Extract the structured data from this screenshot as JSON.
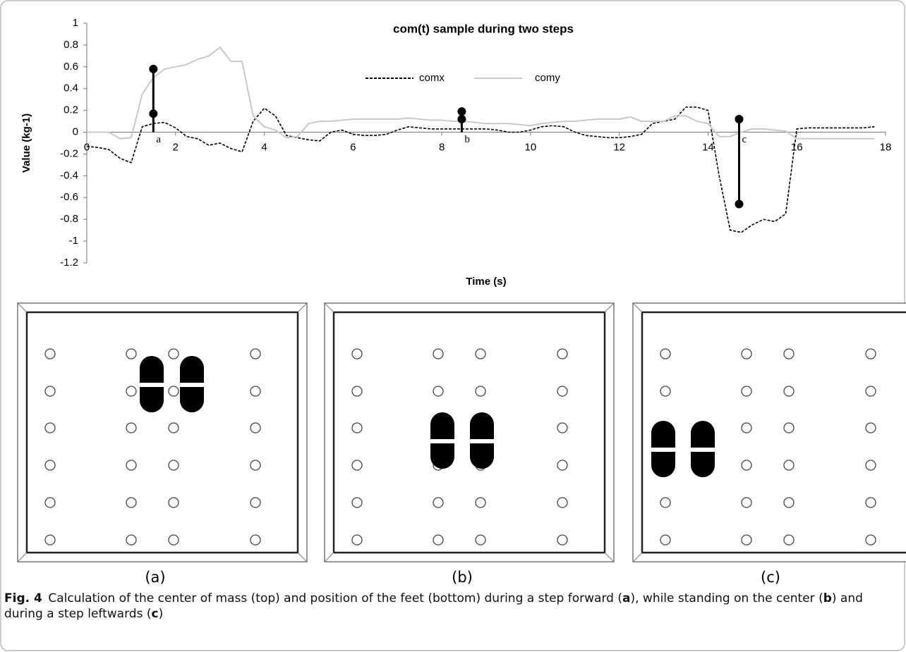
{
  "chart_data": {
    "type": "line",
    "title": "com(t) sample during two steps",
    "xlabel": "Time (s)",
    "ylabel": "Value (kg-1)",
    "x": [
      0,
      0.25,
      0.5,
      0.75,
      1,
      1.25,
      1.5,
      1.75,
      2,
      2.25,
      2.5,
      2.75,
      3,
      3.25,
      3.5,
      3.75,
      4,
      4.25,
      4.5,
      4.75,
      5,
      5.25,
      5.5,
      5.75,
      6,
      6.25,
      6.5,
      6.75,
      7,
      7.25,
      7.5,
      7.75,
      8,
      8.25,
      8.5,
      8.75,
      9,
      9.25,
      9.5,
      9.75,
      10,
      10.25,
      10.5,
      10.75,
      11,
      11.25,
      11.5,
      11.75,
      12,
      12.25,
      12.5,
      12.75,
      13,
      13.25,
      13.5,
      13.75,
      14,
      14.25,
      14.5,
      14.75,
      15,
      15.25,
      15.5,
      15.75,
      16,
      16.25,
      16.5,
      16.75,
      17,
      17.25,
      17.5,
      17.75
    ],
    "series": [
      {
        "name": "comx",
        "color": "#000000",
        "dashed": true,
        "values": [
          -0.13,
          -0.14,
          -0.16,
          -0.24,
          -0.28,
          0.05,
          0.08,
          0.09,
          0.04,
          -0.04,
          -0.06,
          -0.12,
          -0.1,
          -0.15,
          -0.18,
          0.1,
          0.22,
          0.15,
          -0.03,
          -0.05,
          -0.07,
          -0.08,
          0.0,
          0.02,
          -0.02,
          -0.03,
          -0.03,
          -0.02,
          0.02,
          0.05,
          0.04,
          0.03,
          0.03,
          0.03,
          0.03,
          0.03,
          0.03,
          0.02,
          0.0,
          0.0,
          0.02,
          0.05,
          0.06,
          0.05,
          0.0,
          -0.03,
          -0.04,
          -0.05,
          -0.05,
          -0.04,
          -0.02,
          0.08,
          0.1,
          0.12,
          0.23,
          0.23,
          0.2,
          -0.4,
          -0.9,
          -0.92,
          -0.85,
          -0.8,
          -0.82,
          -0.75,
          0.03,
          0.04,
          0.04,
          0.04,
          0.04,
          0.04,
          0.04,
          0.05
        ]
      },
      {
        "name": "comy",
        "color": "#c8c8c8",
        "dashed": false,
        "values": [
          0,
          0,
          0,
          -0.06,
          -0.05,
          0.35,
          0.5,
          0.58,
          0.6,
          0.62,
          0.67,
          0.7,
          0.78,
          0.65,
          0.65,
          0.15,
          0.05,
          0.02,
          -0.05,
          -0.04,
          0.08,
          0.1,
          0.1,
          0.11,
          0.12,
          0.12,
          0.12,
          0.12,
          0.12,
          0.13,
          0.12,
          0.11,
          0.11,
          0.1,
          0.1,
          0.09,
          0.08,
          0.08,
          0.08,
          0.07,
          0.06,
          0.08,
          0.09,
          0.1,
          0.1,
          0.11,
          0.12,
          0.12,
          0.12,
          0.14,
          0.1,
          0.1,
          0.1,
          0.15,
          0.15,
          0.1,
          0.08,
          -0.04,
          -0.04,
          0.0,
          0.03,
          0.03,
          0.02,
          0.01,
          -0.06,
          -0.06,
          -0.06,
          -0.06,
          -0.06,
          -0.06,
          -0.06,
          -0.06
        ]
      }
    ],
    "markers": [
      {
        "label": "a",
        "x": 1.5,
        "values": [
          0.58,
          0.17
        ]
      },
      {
        "label": "b",
        "x": 8.45,
        "values": [
          0.19,
          0.12
        ]
      },
      {
        "label": "c",
        "x": 14.7,
        "values": [
          0.12,
          -0.66
        ]
      }
    ],
    "xlim": [
      0,
      18
    ],
    "ylim": [
      -1.2,
      1
    ],
    "xticks": [
      0,
      2,
      4,
      6,
      8,
      10,
      12,
      14,
      16,
      18
    ],
    "yticks": [
      1,
      0.8,
      0.6,
      0.4,
      0.2,
      0,
      -0.2,
      -0.4,
      -0.6,
      -0.8,
      -1,
      -1.2
    ],
    "grid": false
  },
  "panels": [
    {
      "label": "(a)"
    },
    {
      "label": "(b)"
    },
    {
      "label": "(c)"
    }
  ],
  "caption": {
    "label": "Fig. 4",
    "segments": [
      "Calculation of the center of mass (top) and position of the feet (bottom) during a step forward (",
      "a",
      "), while standing on the center (",
      "b",
      ") and during a step leftwards (",
      "c",
      ")"
    ]
  }
}
